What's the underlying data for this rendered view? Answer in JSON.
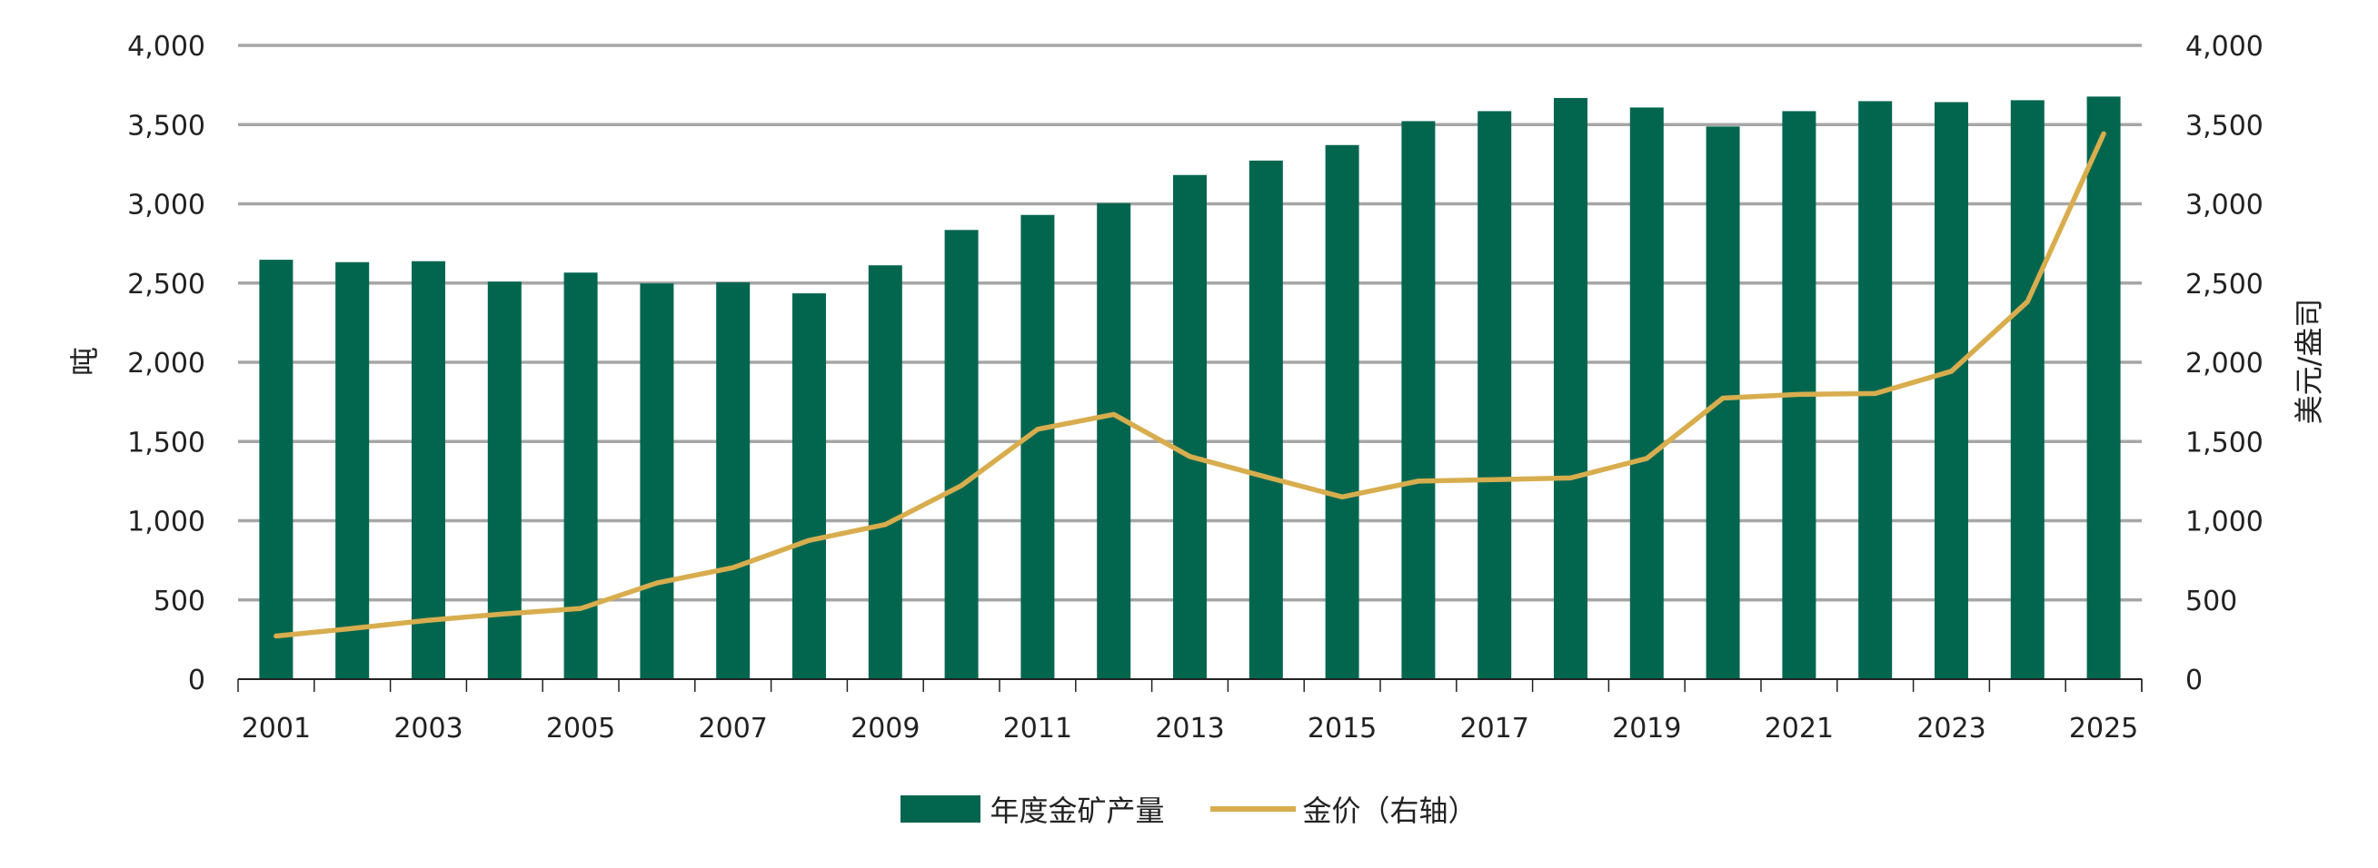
{
  "chart_data": {
    "type": "bar+line",
    "categories": [
      "2001",
      "2002",
      "2003",
      "2004",
      "2005",
      "2006",
      "2007",
      "2008",
      "2009",
      "2010",
      "2011",
      "2012",
      "2013",
      "2014",
      "2015",
      "2016",
      "2017",
      "2018",
      "2019",
      "2020",
      "2021",
      "2022",
      "2023",
      "2024",
      "2025"
    ],
    "x_tick_labels": [
      "2001",
      "2003",
      "2005",
      "2007",
      "2009",
      "2011",
      "2013",
      "2015",
      "2017",
      "2019",
      "2021",
      "2023",
      "2025"
    ],
    "series": [
      {
        "name": "年度金矿产量",
        "type": "bar",
        "axis": "left",
        "color": "#02664f",
        "values": [
          2647,
          2632,
          2638,
          2509,
          2566,
          2498,
          2504,
          2435,
          2612,
          2835,
          2930,
          3004,
          3182,
          3273,
          3371,
          3522,
          3585,
          3668,
          3608,
          3488,
          3585,
          3648,
          3642,
          3654,
          3677
        ]
      },
      {
        "name": "金价（右轴）",
        "type": "line",
        "axis": "right",
        "color": "#d8ad4e",
        "values": [
          272,
          320,
          372,
          412,
          446,
          607,
          704,
          876,
          976,
          1222,
          1577,
          1671,
          1405,
          1276,
          1150,
          1250,
          1259,
          1270,
          1393,
          1774,
          1797,
          1803,
          1943,
          2383,
          3442
        ]
      }
    ],
    "ylabel_left": "吨",
    "ylabel_right": "美元/盎司",
    "ylim_left": [
      0,
      4000
    ],
    "ylim_right": [
      0,
      4000
    ],
    "y_ticks_left": [
      "0",
      "500",
      "1,000",
      "1,500",
      "2,000",
      "2,500",
      "3,000",
      "3,500",
      "4,000"
    ],
    "y_ticks_right": [
      "0",
      "500",
      "1,000",
      "1,500",
      "2,000",
      "2,500",
      "3,000",
      "3,500",
      "4,000"
    ],
    "grid": true,
    "grid_color": "#a6a6a6",
    "legend_position": "bottom"
  }
}
